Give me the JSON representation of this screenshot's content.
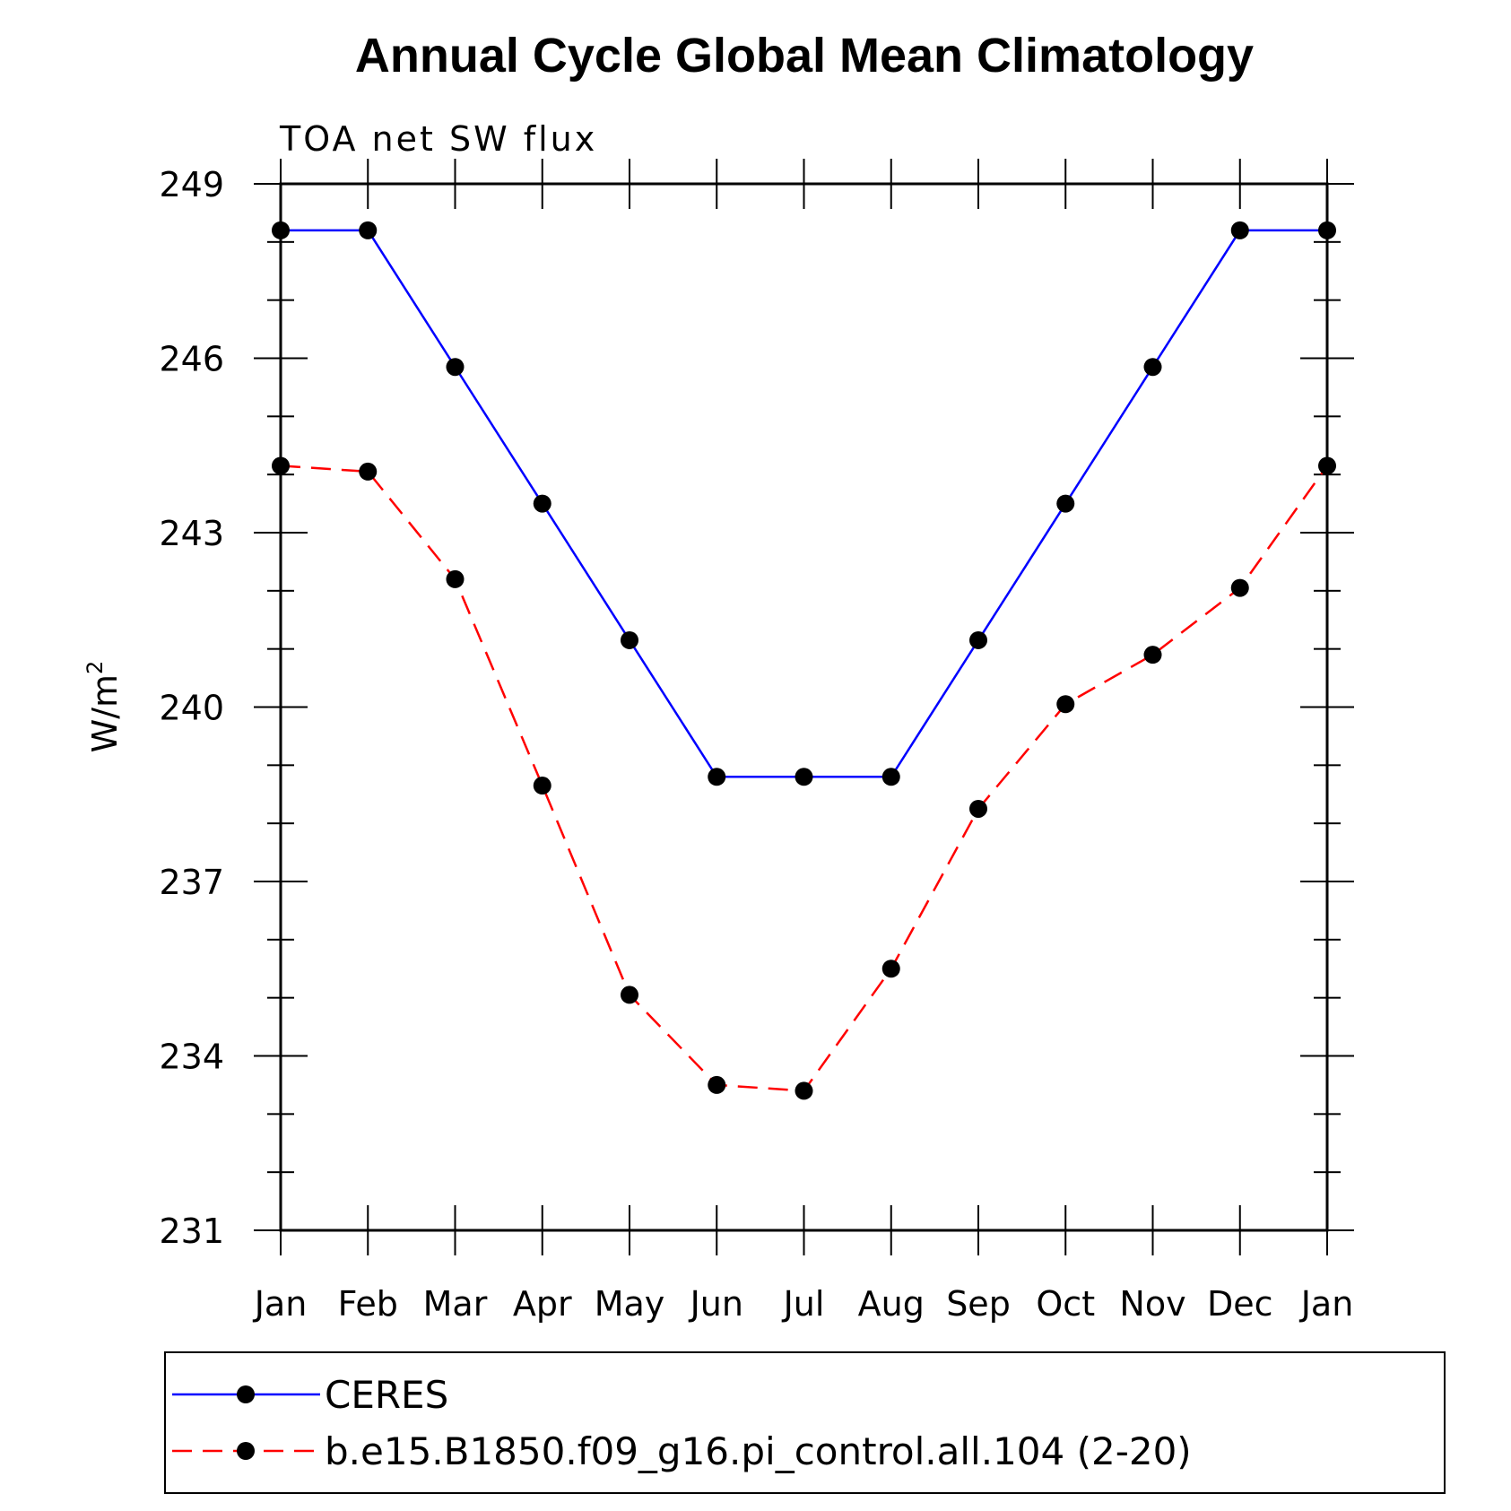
{
  "chart_data": {
    "type": "line",
    "title": "Annual Cycle Global Mean Climatology",
    "subtitle": "TOA net SW flux",
    "ylabel": "W/m",
    "ylabel_sup": "2",
    "xlabel": "",
    "categories": [
      "Jan",
      "Feb",
      "Mar",
      "Apr",
      "May",
      "Jun",
      "Jul",
      "Aug",
      "Sep",
      "Oct",
      "Nov",
      "Dec",
      "Jan"
    ],
    "ylim": [
      231,
      249
    ],
    "yticks": [
      "231",
      "234",
      "237",
      "240",
      "243",
      "246",
      "249"
    ],
    "grid": false,
    "legend_position": "bottom",
    "series": [
      {
        "name": "CERES",
        "color": "#0000ff",
        "style": "solid",
        "values": [
          248.2,
          248.2,
          245.85,
          243.5,
          241.15,
          238.8,
          238.8,
          238.8,
          241.15,
          243.5,
          245.85,
          248.2,
          248.2
        ]
      },
      {
        "name": "b.e15.B1850.f09_g16.pi_control.all.104 (2-20)",
        "color": "#ff0000",
        "style": "dashed",
        "values": [
          244.15,
          244.05,
          242.2,
          238.65,
          235.05,
          233.5,
          233.4,
          235.5,
          238.25,
          240.05,
          240.9,
          242.05,
          244.15
        ]
      }
    ]
  }
}
